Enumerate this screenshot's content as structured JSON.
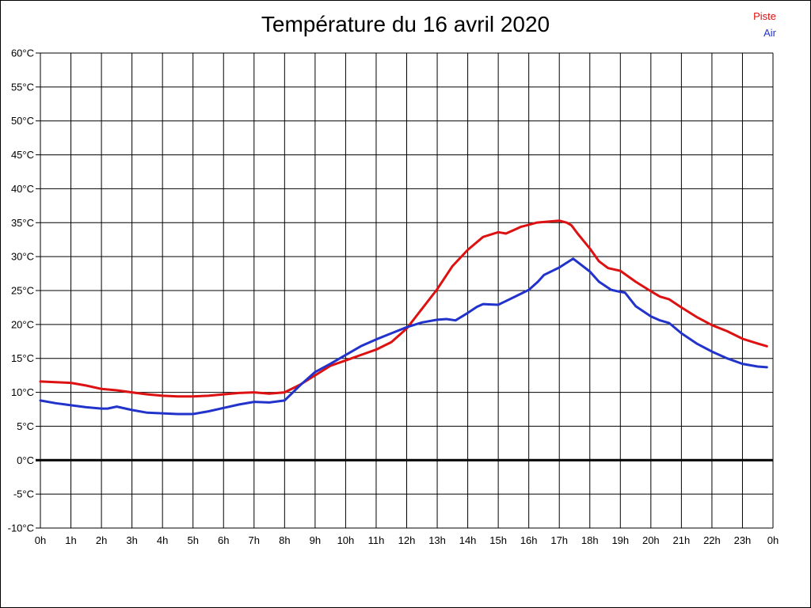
{
  "header": {
    "title": "Température du 16 avril 2020"
  },
  "legend": {
    "position": "top-right",
    "items": [
      {
        "label": "Piste",
        "color": "#dd1111"
      },
      {
        "label": "Air",
        "color": "#2233cc"
      }
    ]
  },
  "chart_data": {
    "type": "line",
    "title": "Température du 16 avril 2020",
    "xlabel": "",
    "ylabel": "",
    "grid": true,
    "grid_color": "#000000",
    "background": "#ffffff",
    "legend_position": "top-right",
    "xlim": [
      0,
      24
    ],
    "ylim": [
      -10,
      60
    ],
    "y_tick_step": 5,
    "y_tick_labels": [
      "60°C",
      "55°C",
      "50°C",
      "45°C",
      "40°C",
      "35°C",
      "30°C",
      "25°C",
      "20°C",
      "15°C",
      "10°C",
      "5°C",
      "0°C",
      "-5°C",
      "-10°C"
    ],
    "x_tick_labels": [
      "0h",
      "1h",
      "2h",
      "3h",
      "4h",
      "5h",
      "6h",
      "7h",
      "8h",
      "9h",
      "10h",
      "11h",
      "12h",
      "13h",
      "14h",
      "15h",
      "16h",
      "17h",
      "18h",
      "19h",
      "20h",
      "21h",
      "22h",
      "23h",
      "0h"
    ],
    "zero_line": {
      "value": 0,
      "color": "#000000",
      "width": 3
    },
    "series": [
      {
        "name": "Piste",
        "color": "#dd1111",
        "points": [
          [
            0,
            11.6
          ],
          [
            0.5,
            11.5
          ],
          [
            1,
            11.4
          ],
          [
            1.5,
            11.0
          ],
          [
            2,
            10.5
          ],
          [
            2.5,
            10.3
          ],
          [
            3,
            10.0
          ],
          [
            3.5,
            9.7
          ],
          [
            4,
            9.5
          ],
          [
            4.5,
            9.4
          ],
          [
            5,
            9.4
          ],
          [
            5.5,
            9.5
          ],
          [
            6,
            9.7
          ],
          [
            6.5,
            9.9
          ],
          [
            7,
            10.0
          ],
          [
            7.5,
            9.8
          ],
          [
            8,
            10.0
          ],
          [
            8.5,
            11.1
          ],
          [
            9,
            12.5
          ],
          [
            9.5,
            13.9
          ],
          [
            10,
            14.7
          ],
          [
            10.5,
            15.5
          ],
          [
            11,
            16.3
          ],
          [
            11.5,
            17.4
          ],
          [
            12,
            19.4
          ],
          [
            12.5,
            22.3
          ],
          [
            13,
            25.2
          ],
          [
            13.5,
            28.6
          ],
          [
            14,
            31.0
          ],
          [
            14.5,
            32.9
          ],
          [
            15,
            33.6
          ],
          [
            15.25,
            33.4
          ],
          [
            15.5,
            33.9
          ],
          [
            15.75,
            34.4
          ],
          [
            16,
            34.7
          ],
          [
            16.25,
            35.0
          ],
          [
            16.5,
            35.1
          ],
          [
            17,
            35.3
          ],
          [
            17.25,
            35.0
          ],
          [
            17.4,
            34.6
          ],
          [
            17.6,
            33.4
          ],
          [
            17.8,
            32.3
          ],
          [
            18,
            31.2
          ],
          [
            18.3,
            29.3
          ],
          [
            18.6,
            28.3
          ],
          [
            19,
            27.9
          ],
          [
            19.5,
            26.3
          ],
          [
            20,
            24.9
          ],
          [
            20.3,
            24.1
          ],
          [
            20.6,
            23.7
          ],
          [
            21,
            22.5
          ],
          [
            21.5,
            21.1
          ],
          [
            22,
            19.9
          ],
          [
            22.5,
            19.0
          ],
          [
            23,
            17.9
          ],
          [
            23.5,
            17.2
          ],
          [
            23.8,
            16.8
          ]
        ]
      },
      {
        "name": "Air",
        "color": "#2233cc",
        "points": [
          [
            0,
            8.8
          ],
          [
            0.5,
            8.4
          ],
          [
            1,
            8.1
          ],
          [
            1.5,
            7.8
          ],
          [
            2,
            7.6
          ],
          [
            2.2,
            7.6
          ],
          [
            2.5,
            7.9
          ],
          [
            3,
            7.4
          ],
          [
            3.5,
            7.0
          ],
          [
            4,
            6.9
          ],
          [
            4.5,
            6.8
          ],
          [
            5,
            6.8
          ],
          [
            5.5,
            7.2
          ],
          [
            6,
            7.7
          ],
          [
            6.5,
            8.2
          ],
          [
            7,
            8.6
          ],
          [
            7.5,
            8.5
          ],
          [
            8,
            8.8
          ],
          [
            8.5,
            11.0
          ],
          [
            9,
            13.0
          ],
          [
            9.5,
            14.2
          ],
          [
            10,
            15.5
          ],
          [
            10.5,
            16.8
          ],
          [
            11,
            17.8
          ],
          [
            11.5,
            18.7
          ],
          [
            12,
            19.6
          ],
          [
            12.5,
            20.3
          ],
          [
            13,
            20.7
          ],
          [
            13.3,
            20.8
          ],
          [
            13.6,
            20.6
          ],
          [
            14,
            21.7
          ],
          [
            14.3,
            22.6
          ],
          [
            14.5,
            23.0
          ],
          [
            15,
            22.9
          ],
          [
            15.5,
            24.0
          ],
          [
            16,
            25.1
          ],
          [
            16.3,
            26.3
          ],
          [
            16.5,
            27.3
          ],
          [
            17,
            28.4
          ],
          [
            17.45,
            29.7
          ],
          [
            18,
            27.8
          ],
          [
            18.3,
            26.3
          ],
          [
            18.7,
            25.1
          ],
          [
            19,
            24.8
          ],
          [
            19.15,
            24.7
          ],
          [
            19.5,
            22.7
          ],
          [
            20,
            21.2
          ],
          [
            20.3,
            20.6
          ],
          [
            20.6,
            20.2
          ],
          [
            21,
            18.7
          ],
          [
            21.5,
            17.2
          ],
          [
            22,
            16.0
          ],
          [
            22.5,
            15.0
          ],
          [
            23,
            14.2
          ],
          [
            23.5,
            13.8
          ],
          [
            23.8,
            13.7
          ]
        ]
      }
    ]
  }
}
